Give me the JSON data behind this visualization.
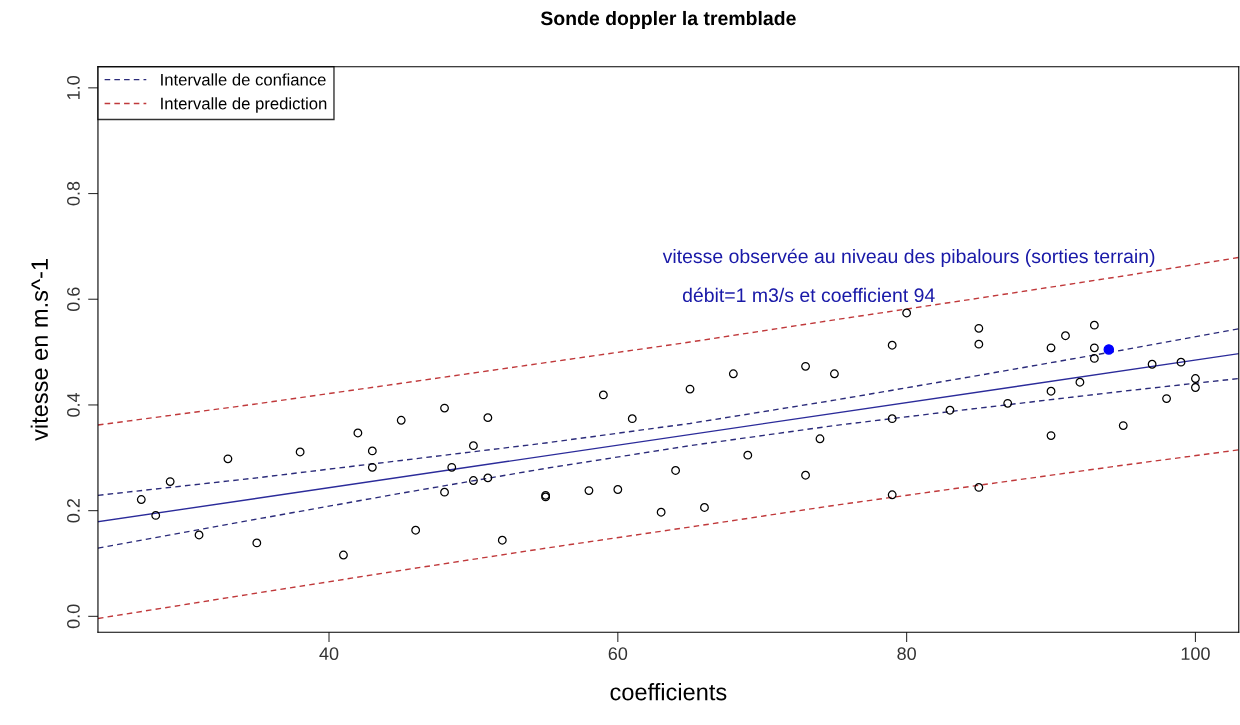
{
  "chart_data": {
    "type": "scatter",
    "title": "Sonde doppler la tremblade",
    "xlabel": "coefficients",
    "ylabel": "vitesse en m.s^-1",
    "xlim": [
      24,
      103
    ],
    "ylim": [
      -0.03,
      1.04
    ],
    "xticks": [
      40,
      60,
      80,
      100
    ],
    "yticks": [
      {
        "value": 0,
        "label": "0.0"
      },
      {
        "value": 0.2,
        "label": "0.2"
      },
      {
        "value": 0.4,
        "label": "0.4"
      },
      {
        "value": 0.6,
        "label": "0.6"
      },
      {
        "value": 0.8,
        "label": "0.8"
      },
      {
        "value": 1.0,
        "label": "1.0"
      }
    ],
    "grid": false,
    "legend": "top left",
    "annotations": [
      "vitesse observée au niveau des pibalours (sorties terrain)",
      "débit=1 m3/s et coefficient 94"
    ],
    "series": [
      {
        "color": "#000000",
        "marker": "circle",
        "x": [
          27,
          28,
          29,
          31,
          33,
          35,
          38,
          41,
          42,
          43,
          43,
          45,
          46,
          48,
          48,
          48.5,
          50,
          50,
          51,
          51,
          52,
          55,
          55,
          58,
          59,
          60,
          61,
          63,
          64,
          65,
          66,
          68,
          69,
          73,
          73,
          74,
          75,
          79,
          79,
          79,
          80,
          83,
          85,
          85,
          85,
          87,
          90,
          90,
          90,
          91,
          92,
          93,
          93,
          93,
          95,
          97,
          98,
          99,
          100,
          100
        ],
        "values": [
          0.221,
          0.191,
          0.255,
          0.154,
          0.298,
          0.139,
          0.311,
          0.116,
          0.347,
          0.313,
          0.282,
          0.371,
          0.163,
          0.394,
          0.235,
          0.282,
          0.323,
          0.257,
          0.376,
          0.262,
          0.144,
          0.229,
          0.226,
          0.238,
          0.419,
          0.24,
          0.374,
          0.197,
          0.276,
          0.43,
          0.206,
          0.459,
          0.305,
          0.473,
          0.267,
          0.336,
          0.459,
          0.513,
          0.374,
          0.23,
          0.574,
          0.39,
          0.545,
          0.515,
          0.244,
          0.403,
          0.508,
          0.426,
          0.342,
          0.531,
          0.443,
          0.551,
          0.508,
          0.488,
          0.361,
          0.477,
          0.412,
          0.481,
          0.45,
          0.433
        ]
      },
      {
        "color": "#0000ff",
        "marker": "circle",
        "x": [
          94
        ],
        "values": [
          0.505
        ]
      },
      {
        "type": "line",
        "color": "#2b2b9a",
        "line_style": "solid",
        "x": [
          24,
          103
        ],
        "values": [
          0.179,
          0.497
        ]
      },
      {
        "type": "line",
        "name": "Intervalle de confiance",
        "color": "#2b2b7a",
        "line_style": "dashed",
        "x": [
          24,
          35,
          45,
          55,
          65,
          75,
          85,
          95,
          103
        ],
        "values": [
          0.229,
          0.262,
          0.295,
          0.328,
          0.365,
          0.409,
          0.456,
          0.504,
          0.544
        ]
      },
      {
        "type": "line",
        "color": "#2b2b7a",
        "line_style": "dashed",
        "x": [
          24,
          35,
          45,
          55,
          65,
          75,
          85,
          95,
          103
        ],
        "values": [
          0.129,
          0.184,
          0.233,
          0.28,
          0.323,
          0.361,
          0.394,
          0.426,
          0.45
        ]
      },
      {
        "type": "line",
        "name": "Intervalle de prediction",
        "color": "#c0393b",
        "line_style": "dashed",
        "x": [
          24,
          35,
          45,
          55,
          65,
          75,
          85,
          95,
          103
        ],
        "values": [
          0.362,
          0.402,
          0.441,
          0.48,
          0.519,
          0.561,
          0.602,
          0.644,
          0.679
        ]
      },
      {
        "type": "line",
        "color": "#c0393b",
        "line_style": "dashed",
        "x": [
          24,
          35,
          45,
          55,
          65,
          75,
          85,
          95,
          103
        ],
        "values": [
          -0.004,
          0.044,
          0.087,
          0.129,
          0.169,
          0.21,
          0.248,
          0.286,
          0.315
        ]
      }
    ]
  }
}
